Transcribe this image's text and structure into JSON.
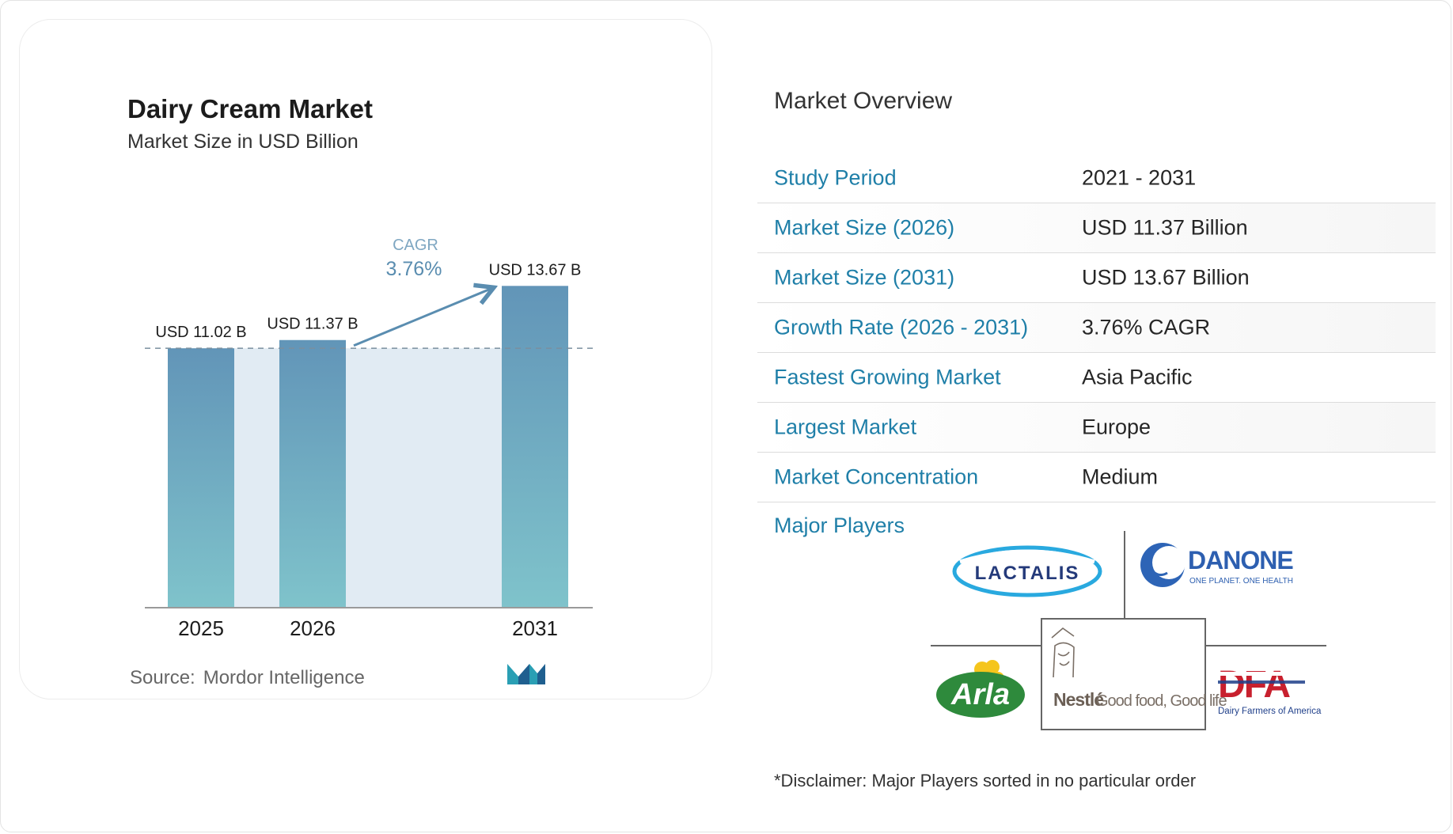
{
  "chart": {
    "title": "Dairy Cream Market",
    "subtitle": "Market Size in USD Billion",
    "source_label": "Source:",
    "source_name": "Mordor Intelligence",
    "cagr_label": "CAGR",
    "cagr_value": "3.76%"
  },
  "chart_data": {
    "type": "bar",
    "categories": [
      "2025",
      "2026",
      "2031"
    ],
    "values": [
      11.02,
      11.37,
      13.67
    ],
    "value_labels": [
      "USD 11.02 B",
      "USD 11.37 B",
      "USD 13.67 B"
    ],
    "title": "Dairy Cream Market",
    "subtitle": "Market Size in USD Billion",
    "unit": "USD Billion",
    "annotation": "CAGR 3.76%",
    "reference_line": 11.02,
    "colors": {
      "bar_top": "#6295b8",
      "bar_bottom": "#7fc3cb",
      "band": "#e1ebf3",
      "arrow": "#5a8db0"
    }
  },
  "overview": {
    "title": "Market Overview",
    "rows": [
      {
        "label": "Study Period",
        "value": "2021 - 2031"
      },
      {
        "label": "Market Size (2026)",
        "value": "USD 11.37 Billion"
      },
      {
        "label": "Market Size (2031)",
        "value": "USD 13.67 Billion"
      },
      {
        "label": "Growth Rate (2026 - 2031)",
        "value": "3.76% CAGR"
      },
      {
        "label": "Fastest Growing Market",
        "value": "Asia Pacific"
      },
      {
        "label": "Largest Market",
        "value": "Europe"
      },
      {
        "label": "Market Concentration",
        "value": "Medium"
      }
    ],
    "label_color": "#1f7fa8"
  },
  "major_players": {
    "title": "Major Players",
    "logos": [
      {
        "icon": "lactalis-logo",
        "text": "LACTALIS"
      },
      {
        "icon": "danone-logo",
        "text": "DANONE",
        "tagline": "ONE PLANET. ONE HEALTH"
      },
      {
        "icon": "arla-logo",
        "text": "Arla"
      },
      {
        "icon": "nestle-logo",
        "text": "Nestlé",
        "tagline": "Good food, Good life"
      },
      {
        "icon": "dfa-logo",
        "text": "DFA",
        "tagline": "Dairy Farmers of America"
      }
    ]
  },
  "disclaimer": "*Disclaimer: Major Players sorted in no particular order"
}
